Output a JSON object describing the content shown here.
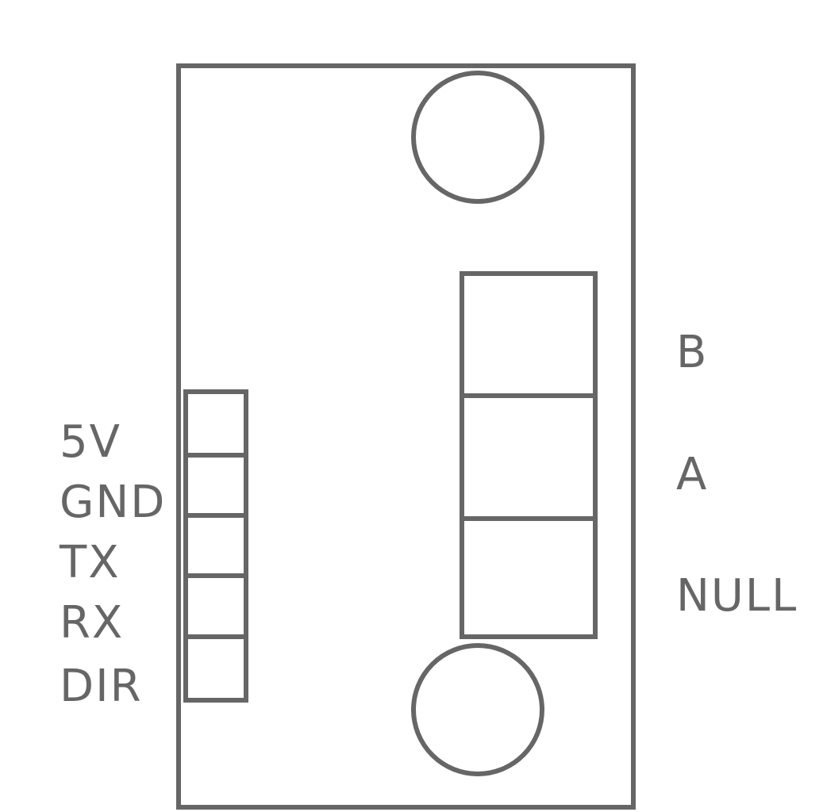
{
  "left_header": {
    "pins": [
      {
        "label": "5V"
      },
      {
        "label": "GND"
      },
      {
        "label": "TX"
      },
      {
        "label": "RX"
      },
      {
        "label": "DIR"
      }
    ]
  },
  "right_terminal": {
    "pins": [
      {
        "label": "B"
      },
      {
        "label": "A"
      },
      {
        "label": "NULL"
      }
    ]
  },
  "colors": {
    "stroke": "#666666",
    "background": "#ffffff"
  }
}
